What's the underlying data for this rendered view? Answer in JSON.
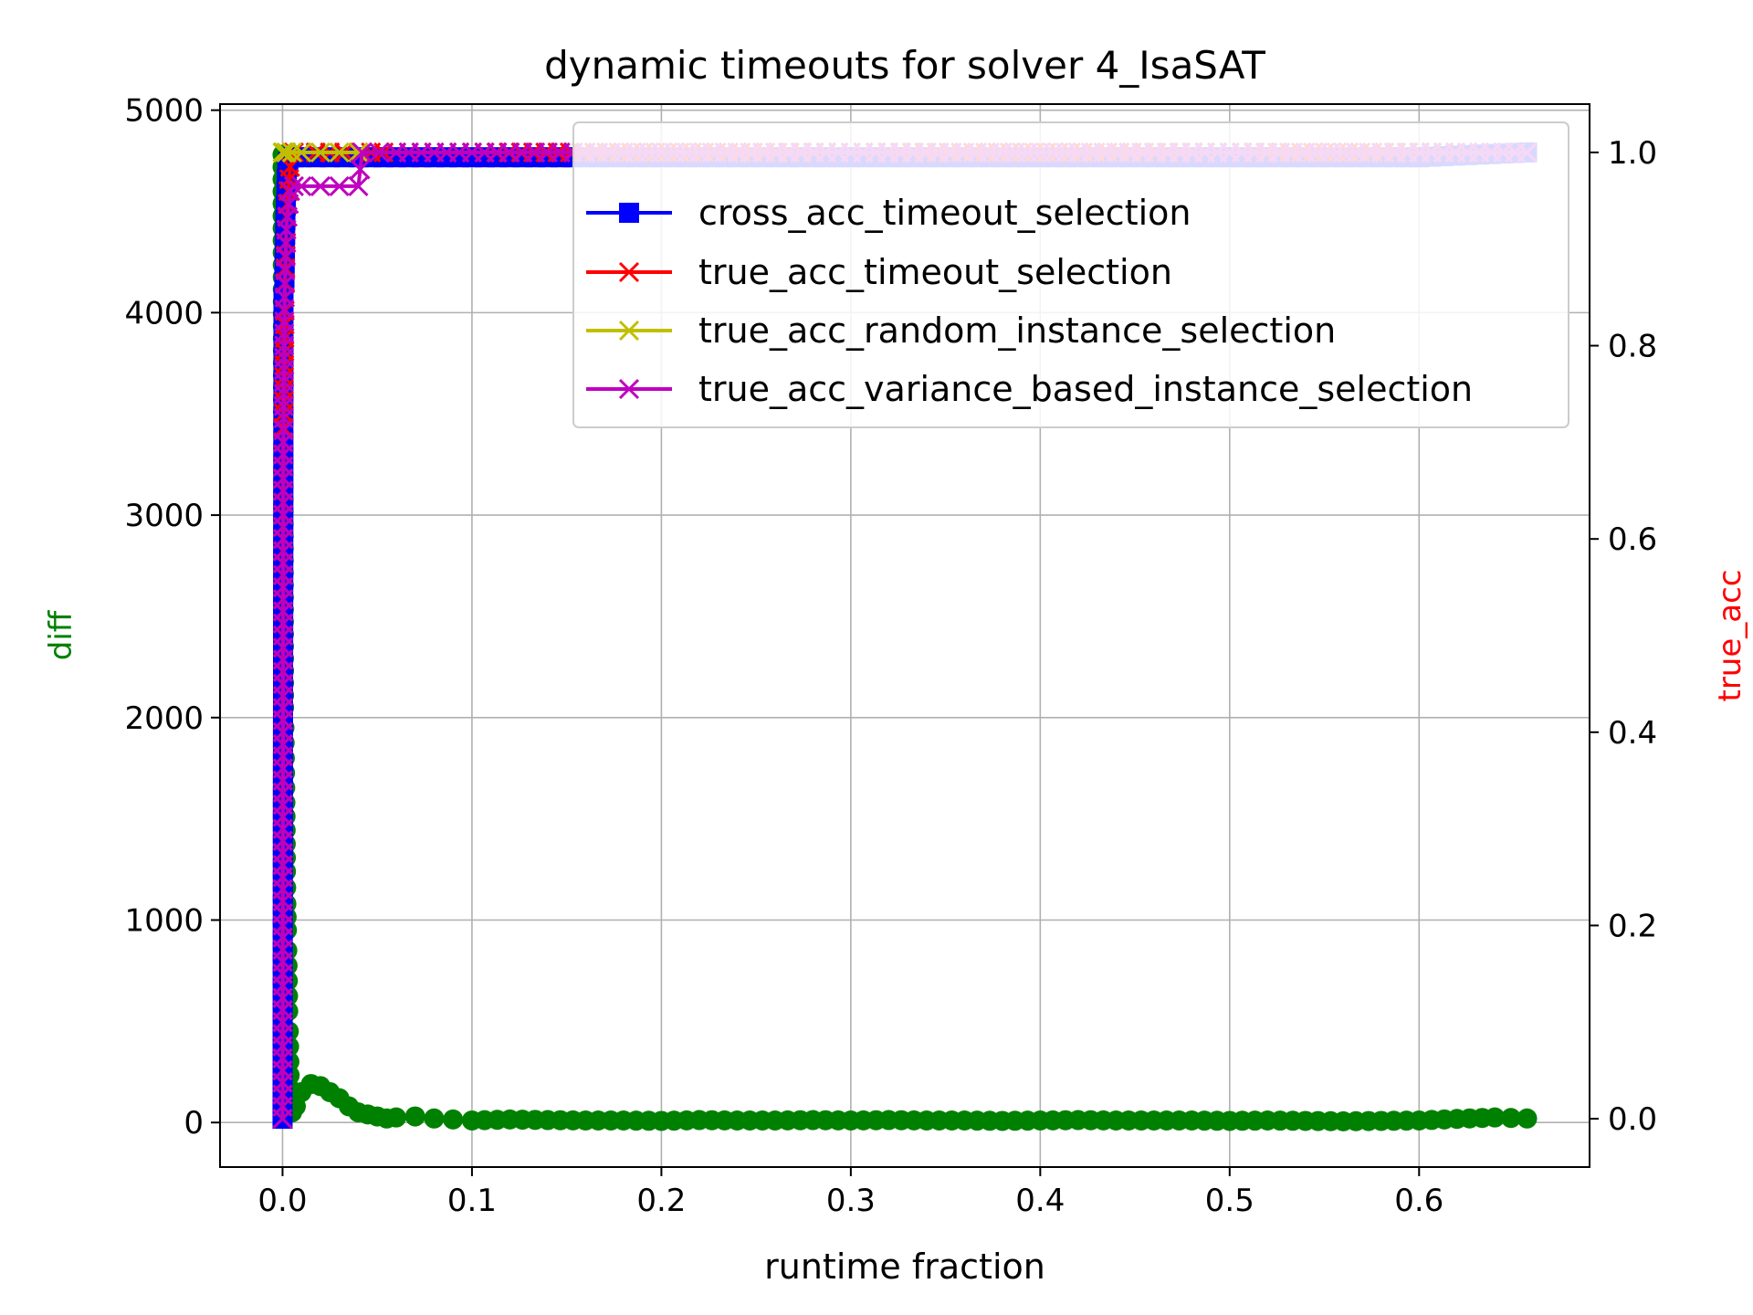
{
  "chart_data": {
    "type": "line",
    "title": "dynamic timeouts for solver 4_IsaSAT",
    "xlabel": "runtime fraction",
    "ylabel_left": "diff",
    "ylabel_right": "true_acc",
    "xlim": [
      -0.033,
      0.69
    ],
    "ylim_left": [
      -220,
      5030
    ],
    "ylim_right": [
      -0.05,
      1.05
    ],
    "x_ticks": [
      0.0,
      0.1,
      0.2,
      0.3,
      0.4,
      0.5,
      0.6
    ],
    "x_tick_labels": [
      "0.0",
      "0.1",
      "0.2",
      "0.3",
      "0.4",
      "0.5",
      "0.6"
    ],
    "y_left_ticks": [
      0,
      1000,
      2000,
      3000,
      4000,
      5000
    ],
    "y_left_tick_labels": [
      "0",
      "1000",
      "2000",
      "3000",
      "4000",
      "5000"
    ],
    "y_right_ticks": [
      0.0,
      0.2,
      0.4,
      0.6,
      0.8,
      1.0
    ],
    "y_right_tick_labels": [
      "0.0",
      "0.2",
      "0.4",
      "0.6",
      "0.8",
      "1.0"
    ],
    "grid": true,
    "legend_position": "upper-right",
    "colors": {
      "diff": "#008000",
      "cross_acc": "#0000ff",
      "true_acc": "#ff0000",
      "random": "#bfbf00",
      "variance": "#bf00bf",
      "ylabel_left": "#008000",
      "ylabel_right": "#ff0000"
    },
    "series": [
      {
        "name": "diff",
        "axis": "left",
        "marker": "circle",
        "x": [
          0.0,
          0.0003,
          0.0005,
          0.0008,
          0.001,
          0.0012,
          0.0015,
          0.0018,
          0.002,
          0.0023,
          0.0025,
          0.0028,
          0.003,
          0.0033,
          0.0036,
          0.004,
          0.005,
          0.007,
          0.01,
          0.015,
          0.02,
          0.025,
          0.03,
          0.035,
          0.04,
          0.045,
          0.05,
          0.055,
          0.06,
          0.07,
          0.08,
          0.09,
          0.1,
          0.12,
          0.14,
          0.16,
          0.18,
          0.2,
          0.22,
          0.24,
          0.26,
          0.28,
          0.3,
          0.32,
          0.34,
          0.36,
          0.38,
          0.4,
          0.42,
          0.44,
          0.46,
          0.48,
          0.5,
          0.52,
          0.54,
          0.56,
          0.58,
          0.6,
          0.62,
          0.64,
          0.657
        ],
        "y": [
          4780,
          3450,
          3380,
          2050,
          1950,
          1800,
          1580,
          1240,
          1080,
          950,
          850,
          700,
          550,
          450,
          300,
          100,
          50,
          80,
          150,
          190,
          180,
          150,
          120,
          80,
          50,
          40,
          30,
          20,
          25,
          30,
          20,
          15,
          10,
          15,
          12,
          10,
          10,
          8,
          12,
          10,
          10,
          12,
          10,
          12,
          10,
          10,
          8,
          10,
          12,
          10,
          10,
          10,
          8,
          10,
          8,
          6,
          8,
          10,
          18,
          25,
          20
        ]
      },
      {
        "name": "cross_acc_timeout_selection",
        "axis": "right",
        "marker": "square",
        "x": [
          0.0,
          0.0005,
          0.001,
          0.0015,
          0.002,
          0.0025,
          0.003,
          0.004,
          0.006,
          0.01,
          0.04,
          0.1,
          0.2,
          0.3,
          0.4,
          0.5,
          0.6,
          0.657
        ],
        "y": [
          0.0,
          0.85,
          0.87,
          0.93,
          0.96,
          0.985,
          0.99,
          0.995,
          0.995,
          0.995,
          0.995,
          0.995,
          0.995,
          0.995,
          0.995,
          0.995,
          0.995,
          1.0
        ]
      },
      {
        "name": "true_acc_timeout_selection",
        "axis": "right",
        "marker": "x",
        "x": [
          0.0,
          0.0003,
          0.0006,
          0.0009,
          0.0012,
          0.0015,
          0.002,
          0.003,
          0.004,
          0.006,
          0.01,
          0.04,
          0.1,
          0.3,
          0.5,
          0.657
        ],
        "y": [
          0.0,
          0.7,
          0.73,
          0.78,
          0.85,
          0.88,
          0.92,
          0.96,
          0.985,
          1.0,
          1.0,
          1.0,
          1.0,
          1.0,
          1.0,
          1.0
        ]
      },
      {
        "name": "true_acc_random_instance_selection",
        "axis": "right",
        "marker": "x",
        "x": [
          0.0,
          0.0005,
          0.002,
          0.005,
          0.01,
          0.02,
          0.03,
          0.04
        ],
        "y": [
          1.0,
          1.0,
          1.0,
          1.0,
          1.0,
          1.0,
          1.0,
          1.0
        ]
      },
      {
        "name": "true_acc_variance_based_instance_selection",
        "axis": "right",
        "marker": "x",
        "x": [
          0.0,
          0.0005,
          0.001,
          0.002,
          0.004,
          0.006,
          0.01,
          0.02,
          0.03,
          0.04,
          0.042,
          0.06,
          0.1,
          0.2,
          0.3,
          0.4,
          0.5,
          0.6,
          0.657
        ],
        "y": [
          0.0,
          0.7,
          0.85,
          0.92,
          0.96,
          0.965,
          0.965,
          0.965,
          0.965,
          0.965,
          1.0,
          1.0,
          1.0,
          1.0,
          1.0,
          1.0,
          1.0,
          1.0,
          1.0
        ]
      }
    ]
  }
}
